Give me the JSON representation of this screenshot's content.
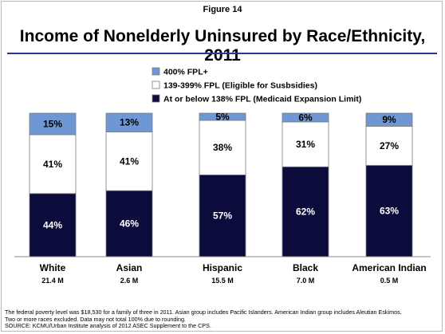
{
  "figure_label": "Figure 14",
  "colors": {
    "fpl_400_plus": "#6f97d3",
    "fpl_139_399": "#ffffff",
    "fpl_138_below": "#0c0c3c",
    "title_rule": "#1f3a93"
  },
  "chart_data": {
    "type": "bar",
    "stacked": true,
    "percent_stacked": true,
    "title": "Income of Nonelderly Uninsured by Race/Ethnicity, 2011",
    "categories": [
      "White",
      "Asian",
      "Hispanic",
      "Black",
      "American Indian"
    ],
    "category_sublabels": [
      "21.4 M",
      "2.6 M",
      "15.5 M",
      "7.0 M",
      "0.5 M"
    ],
    "series": [
      {
        "name": "At or below 138% FPL (Medicaid Expansion Limit)",
        "values": [
          44,
          46,
          57,
          62,
          63
        ],
        "labels": [
          "44%",
          "46%",
          "57%",
          "62%",
          "63%"
        ]
      },
      {
        "name": "139-399% FPL (Eligible for Susbsidies)",
        "values": [
          41,
          41,
          38,
          31,
          27
        ],
        "labels": [
          "41%",
          "41%",
          "38%",
          "31%",
          "27%"
        ]
      },
      {
        "name": "400% FPL+",
        "values": [
          15,
          13,
          5,
          6,
          9
        ],
        "labels": [
          "15%",
          "13%",
          "5%",
          "6%",
          "9%"
        ]
      }
    ],
    "legend": {
      "placement": "top-center",
      "order": [
        "400% FPL+",
        "139-399% FPL (Eligible for Susbsidies)",
        "At or below 138% FPL (Medicaid Expansion Limit)"
      ]
    },
    "ylim": [
      0,
      100
    ],
    "grid": false
  },
  "footnotes": [
    "The federal poverty level was $18,530 for a family of three  in 2011. Asian group includes Pacific Islanders. American Indian group includes Aleutian Eskimos.",
    "Two or more races excluded. Data may not total 100% due to rounding.",
    "SOURCE: KCMU/Urban Institute analysis of 2012 ASEC Supplement to the CPS."
  ]
}
